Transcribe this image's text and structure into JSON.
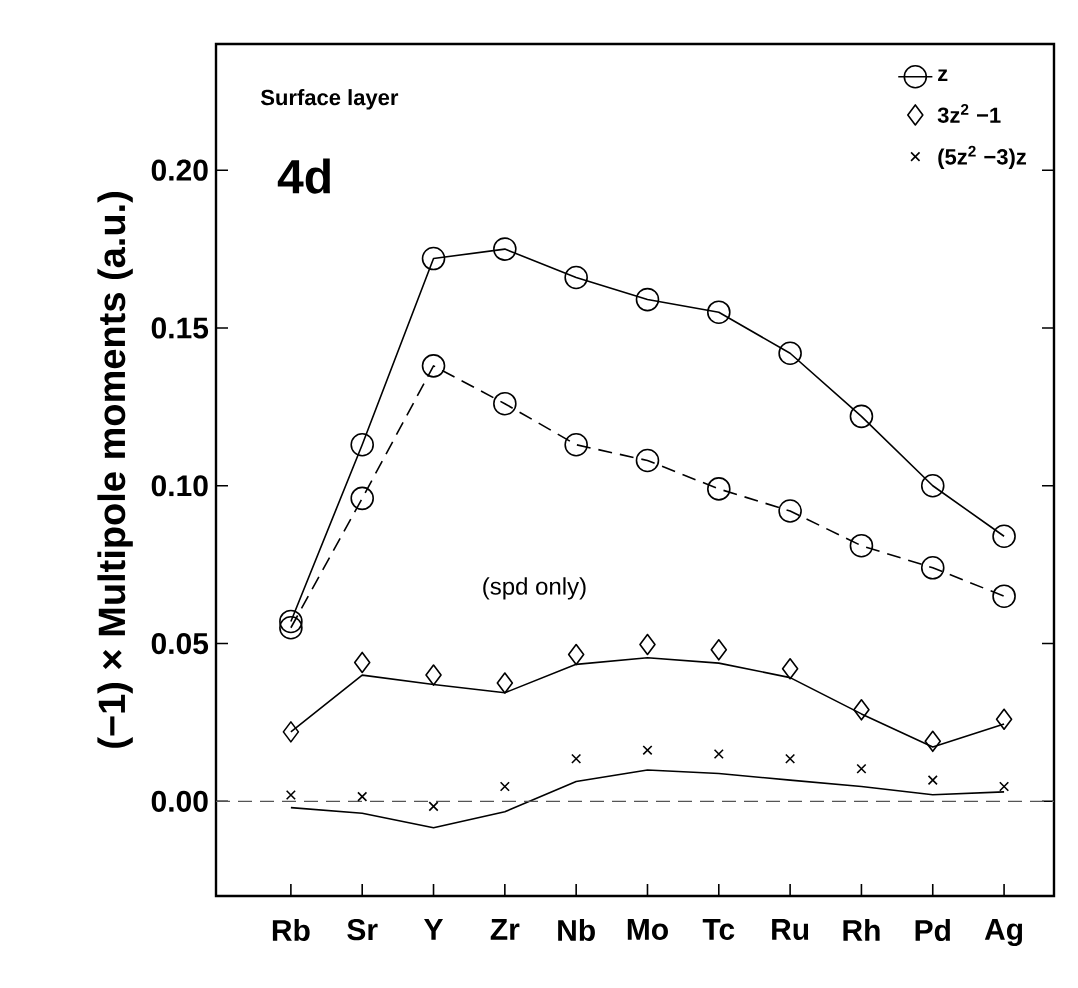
{
  "chart_data": {
    "type": "line",
    "ylabel": "(−1) × Multipole moments (a.u.)",
    "categories": [
      "Rb",
      "Sr",
      "Y",
      "Zr",
      "Nb",
      "Mo",
      "Tc",
      "Ru",
      "Rh",
      "Pd",
      "Ag"
    ],
    "series": [
      {
        "name": "z",
        "marker": "circle",
        "line_style": "solid",
        "color": "#000000",
        "values": [
          0.057,
          0.113,
          0.172,
          0.175,
          0.166,
          0.159,
          0.155,
          0.142,
          0.122,
          0.1,
          0.084
        ]
      },
      {
        "type": "line",
        "marker": "circle",
        "line_style": "dashed",
        "color": "#000000",
        "values": [
          0.055,
          0.096,
          0.138,
          0.126,
          0.113,
          0.108,
          0.099,
          0.092,
          0.081,
          0.074,
          0.065
        ]
      },
      {
        "name": "3z$^{2}$ −1",
        "type": "scatter",
        "marker": "diamond",
        "color": "#000000",
        "values": [
          0.022,
          0.044,
          0.04,
          0.0375,
          0.0465,
          0.0497,
          0.048,
          0.042,
          0.029,
          0.019,
          0.026
        ]
      },
      {
        "type": "line",
        "marker": "none",
        "line_style": "solid",
        "color": "#000000",
        "values": [
          0.022,
          0.04,
          0.037,
          0.0344,
          0.0434,
          0.0455,
          0.0438,
          0.0392,
          0.0277,
          0.0172,
          0.0245
        ]
      },
      {
        "name": "(5z$^{2}$ −3)z",
        "type": "scatter",
        "marker": "cross",
        "color": "#000000",
        "values": [
          0.002,
          0.0015,
          -0.0016,
          0.0047,
          0.0135,
          0.0162,
          0.015,
          0.0135,
          0.0103,
          0.0067,
          0.0047
        ]
      },
      {
        "type": "line",
        "marker": "none",
        "line_style": "solid",
        "color": "#000000",
        "values": [
          -0.002,
          -0.0038,
          -0.0084,
          -0.0033,
          0.0063,
          0.0099,
          0.0088,
          0.0067,
          0.0047,
          0.0021,
          0.003
        ]
      }
    ],
    "ylim": [
      -0.03,
      0.24
    ],
    "yticks": [
      {
        "value": 0,
        "label": "0.00"
      },
      {
        "value": 0.05,
        "label": "0.05"
      },
      {
        "value": 0.1,
        "label": "0.10"
      },
      {
        "value": 0.15,
        "label": "0.15"
      },
      {
        "value": 0.2,
        "label": "0.20"
      }
    ],
    "ref_lines": [
      {
        "axis": "y",
        "value": 0,
        "line_style": "dashed",
        "color": "#555555"
      }
    ],
    "annotations": [
      "Surface layer",
      "4d",
      "(spd only)"
    ],
    "legend": "top right",
    "grid": false
  }
}
